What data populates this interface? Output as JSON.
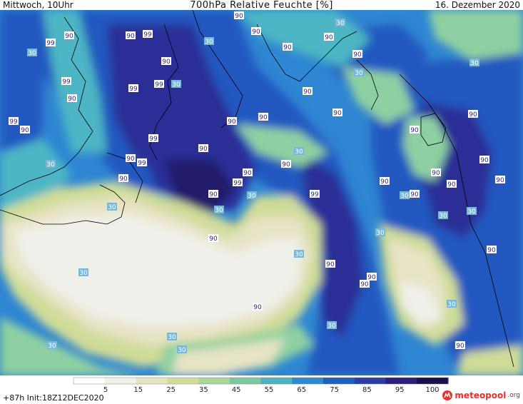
{
  "header": {
    "left": "Mittwoch, 10Uhr",
    "title": "700hPa Relative Feuchte [%]",
    "right": "16. Dezember 2020"
  },
  "legend": {
    "ticks": [
      "5",
      "15",
      "25",
      "35",
      "45",
      "55",
      "65",
      "75",
      "85",
      "95",
      "100"
    ],
    "colors": [
      "#ffffff",
      "#f2f1e7",
      "#e6e4c2",
      "#d2dc9a",
      "#a9d69a",
      "#7cc8a1",
      "#4eb3c0",
      "#2e8ad0",
      "#1f5fc4",
      "#2a3da8",
      "#2a1f7a",
      "#1a0f4d"
    ]
  },
  "footer": {
    "run": "+87h Init:18Z12DEC2020"
  },
  "brand": {
    "name": "meteopool",
    "tld": ".org"
  },
  "map": {
    "contour_labels": [
      "99",
      "90",
      "30"
    ],
    "colors": {
      "dry": "#f0f0ea",
      "cream": "#e7e3c5",
      "yellow_green": "#cfdc98",
      "green": "#8fd0a2",
      "teal": "#4db6c4",
      "blue": "#2f86d2",
      "mid_blue": "#2458c0",
      "dark_blue": "#2a2e96",
      "very_dark": "#221a6a"
    }
  }
}
